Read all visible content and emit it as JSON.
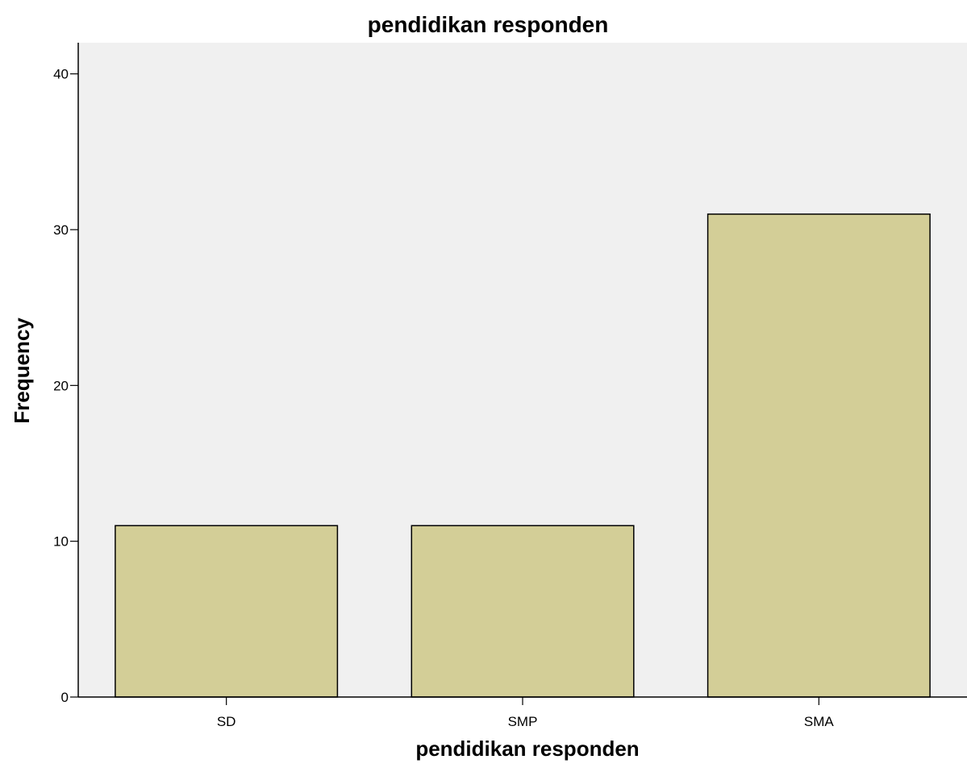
{
  "chart_data": {
    "type": "bar",
    "title": "pendidikan responden",
    "xlabel": "pendidikan responden",
    "ylabel": "Frequency",
    "categories": [
      "SD",
      "SMP",
      "SMA"
    ],
    "values": [
      11,
      11,
      31
    ],
    "ylim": [
      0,
      42
    ],
    "yticks": [
      0,
      10,
      20,
      30,
      40
    ],
    "grid": false,
    "legend": "none",
    "colors": {
      "bar_fill": "#d3ce97",
      "bar_stroke": "#000000",
      "plot_background": "#f0f0f0",
      "axis": "#000000"
    }
  }
}
